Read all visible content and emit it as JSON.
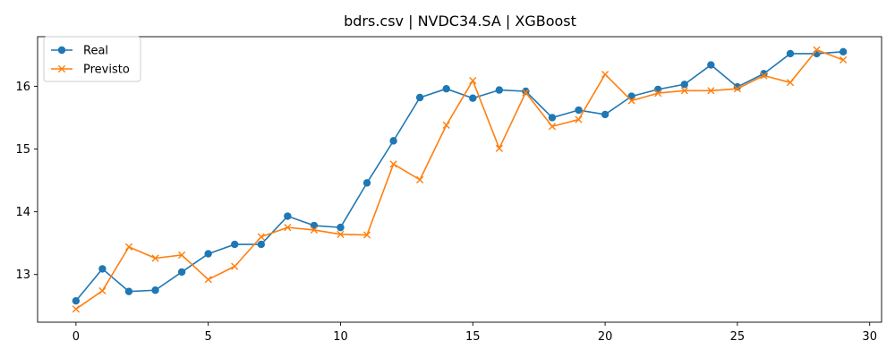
{
  "chart_data": {
    "type": "line",
    "title": "bdrs.csv | NVDC34.SA | XGBoost",
    "xlabel": "",
    "ylabel": "",
    "x": [
      0,
      1,
      2,
      3,
      4,
      5,
      6,
      7,
      8,
      9,
      10,
      11,
      12,
      13,
      14,
      15,
      16,
      17,
      18,
      19,
      20,
      21,
      22,
      23,
      24,
      25,
      26,
      27,
      28,
      29
    ],
    "xlim": [
      -1.45,
      30.45
    ],
    "ylim": [
      12.24,
      16.79
    ],
    "xticks": [
      0,
      5,
      10,
      15,
      20,
      25,
      30
    ],
    "yticks": [
      13,
      14,
      15,
      16
    ],
    "xtick_labels": [
      "0",
      "5",
      "10",
      "15",
      "20",
      "25",
      "30"
    ],
    "ytick_labels": [
      "13",
      "14",
      "15",
      "16"
    ],
    "grid": false,
    "legend_position": "top-left",
    "series": [
      {
        "name": "Real",
        "color": "#1f77b4",
        "marker": "circle",
        "values": [
          12.58,
          13.09,
          12.73,
          12.75,
          13.04,
          13.33,
          13.48,
          13.48,
          13.93,
          13.78,
          13.75,
          14.46,
          15.13,
          15.82,
          15.96,
          15.81,
          15.94,
          15.92,
          15.5,
          15.62,
          15.55,
          15.84,
          15.95,
          16.03,
          16.34,
          15.99,
          16.2,
          16.52,
          16.52,
          16.55
        ]
      },
      {
        "name": "Previsto",
        "color": "#ff7f0e",
        "marker": "x",
        "values": [
          12.45,
          12.74,
          13.44,
          13.26,
          13.31,
          12.92,
          13.13,
          13.6,
          13.75,
          13.71,
          13.64,
          13.63,
          14.76,
          14.51,
          15.38,
          16.09,
          15.01,
          15.9,
          15.36,
          15.47,
          16.19,
          15.77,
          15.89,
          15.93,
          15.93,
          15.96,
          16.17,
          16.06,
          16.58,
          16.42
        ]
      }
    ]
  }
}
